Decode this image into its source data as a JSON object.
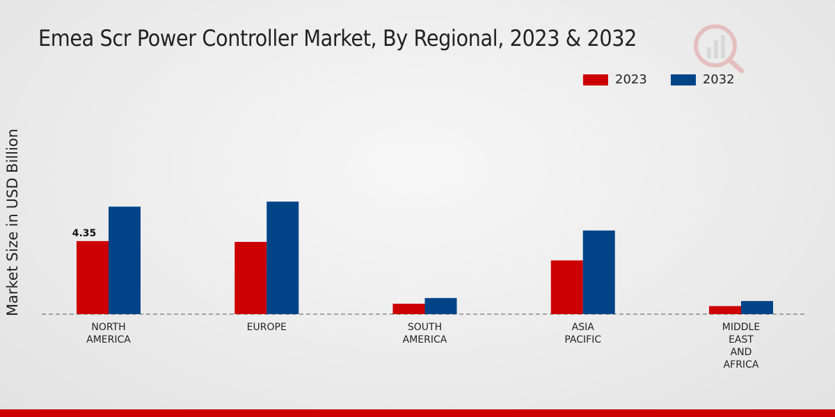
{
  "chart_data": {
    "type": "bar",
    "title": "Emea Scr Power Controller Market, By Regional, 2023 & 2032",
    "ylabel": "Market Size in USD Billion",
    "xlabel": "",
    "ylim": [
      0,
      12
    ],
    "categories": [
      "NORTH\nAMERICA",
      "EUROPE",
      "SOUTH\nAMERICA",
      "ASIA\nPACIFIC",
      "MIDDLE\nEAST\nAND\nAFRICA"
    ],
    "series": [
      {
        "name": "2023",
        "color": "#cc0000",
        "values": [
          4.35,
          4.3,
          0.62,
          3.2,
          0.48
        ]
      },
      {
        "name": "2032",
        "color": "#004488",
        "values": [
          6.4,
          6.7,
          0.96,
          4.98,
          0.78
        ]
      }
    ],
    "data_labels": [
      {
        "series": 0,
        "index": 0,
        "text": "4.35"
      }
    ],
    "legend_position": "top-right",
    "grid": false
  }
}
